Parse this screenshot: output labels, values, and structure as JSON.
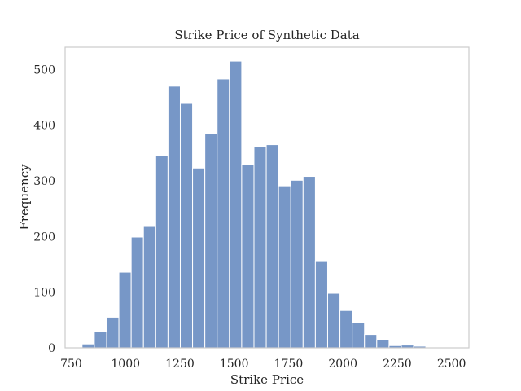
{
  "chart_data": {
    "type": "bar",
    "title": "Strike Price of Synthetic Data",
    "xlabel": "Strike Price",
    "ylabel": "Frequency",
    "xlim": [
      722,
      2580
    ],
    "ylim": [
      0,
      540
    ],
    "xticks": [
      750,
      1000,
      1250,
      1500,
      1750,
      2000,
      2250,
      2500
    ],
    "yticks": [
      0,
      100,
      200,
      300,
      400,
      500
    ],
    "grid": false,
    "bin_edges": [
      800,
      856.5,
      913,
      969.5,
      1026,
      1082.5,
      1139,
      1195.5,
      1252,
      1308.5,
      1365,
      1421.5,
      1478,
      1534.5,
      1591,
      1647.5,
      1704,
      1760.5,
      1817,
      1873.5,
      1930,
      1986.5,
      2043,
      2099.5,
      2156,
      2212.5,
      2269,
      2325.5,
      2382,
      2438.5,
      2495
    ],
    "values": [
      7,
      29,
      55,
      136,
      199,
      218,
      345,
      470,
      439,
      323,
      385,
      483,
      515,
      330,
      362,
      365,
      291,
      301,
      308,
      155,
      98,
      67,
      46,
      24,
      14,
      4,
      5,
      3,
      1,
      1
    ],
    "color": "#7797c7"
  }
}
